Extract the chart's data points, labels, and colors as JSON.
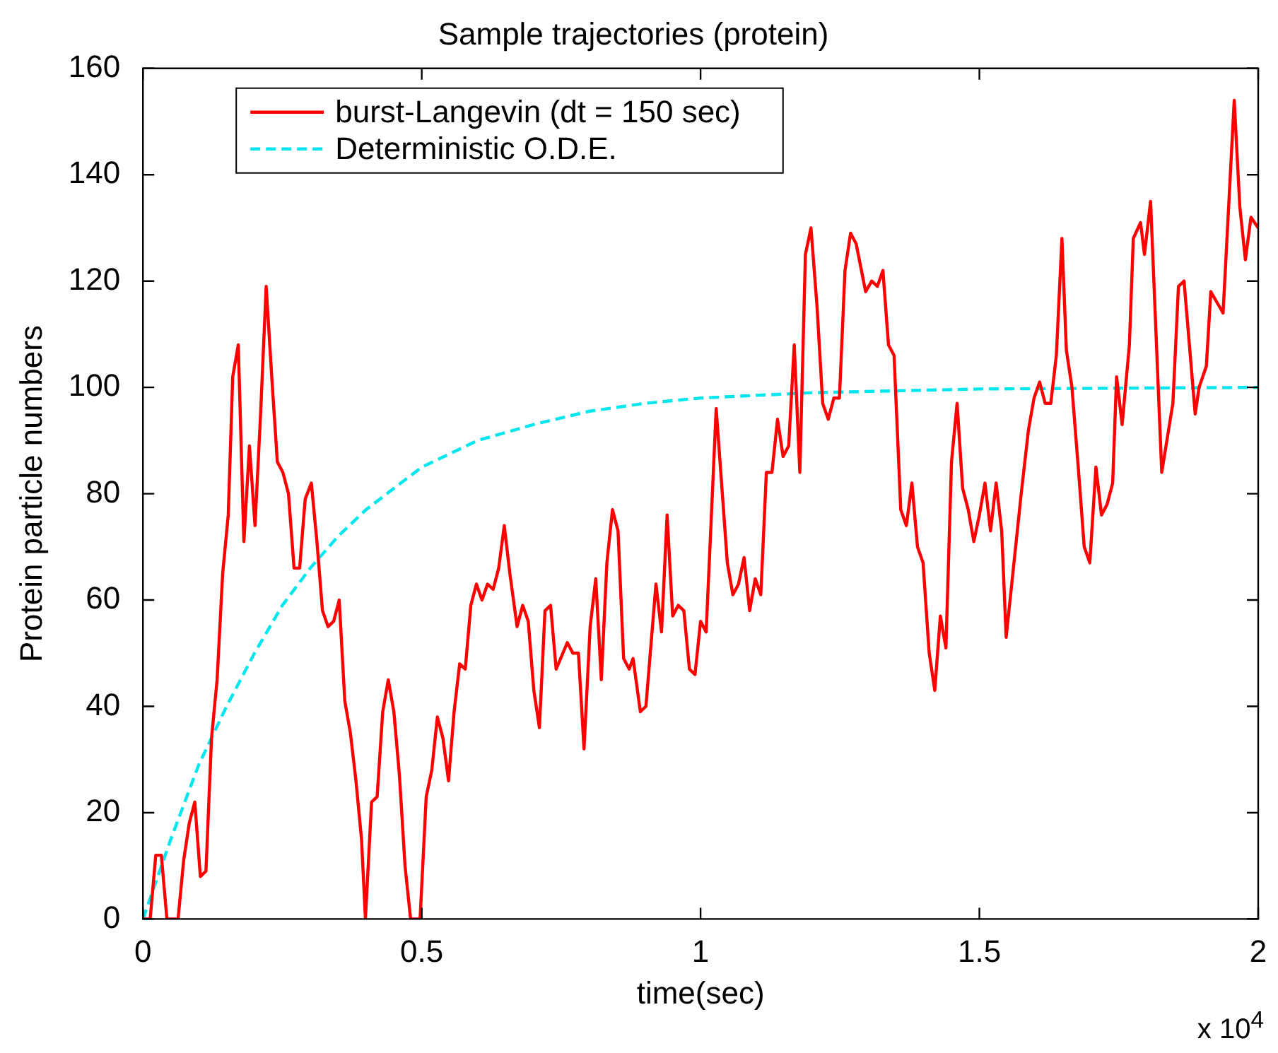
{
  "chart_data": {
    "type": "line",
    "title": "Sample trajectories (protein)",
    "xlabel": "time(sec)",
    "ylabel": "Protein particle numbers",
    "annotations": [
      "x 10$^{4}$"
    ],
    "xlim": [
      0,
      2
    ],
    "xticks": [
      0,
      0.5,
      1,
      1.5,
      2
    ],
    "ylim": [
      0,
      160
    ],
    "yticks": [
      0,
      20,
      40,
      60,
      80,
      100,
      120,
      140,
      160
    ],
    "grid": false,
    "legend": "top left",
    "marker": "none",
    "series": [
      {
        "name": "burst-Langevin (dt = 150 sec)",
        "color": "#ff0000",
        "line_style": "solid",
        "x": [
          0,
          0.013,
          0.023,
          0.033,
          0.043,
          0.063,
          0.073,
          0.083,
          0.093,
          0.103,
          0.113,
          0.123,
          0.133,
          0.143,
          0.153,
          0.161,
          0.171,
          0.181,
          0.191,
          0.201,
          0.211,
          0.221,
          0.231,
          0.241,
          0.251,
          0.261,
          0.271,
          0.281,
          0.291,
          0.302,
          0.312,
          0.322,
          0.332,
          0.342,
          0.352,
          0.362,
          0.372,
          0.382,
          0.392,
          0.399,
          0.41,
          0.42,
          0.43,
          0.44,
          0.45,
          0.46,
          0.47,
          0.48,
          0.497,
          0.508,
          0.518,
          0.528,
          0.538,
          0.548,
          0.558,
          0.568,
          0.578,
          0.588,
          0.598,
          0.608,
          0.618,
          0.628,
          0.638,
          0.648,
          0.658,
          0.671,
          0.681,
          0.691,
          0.701,
          0.711,
          0.721,
          0.731,
          0.741,
          0.761,
          0.771,
          0.781,
          0.791,
          0.802,
          0.812,
          0.822,
          0.832,
          0.842,
          0.852,
          0.862,
          0.872,
          0.879,
          0.892,
          0.902,
          0.92,
          0.93,
          0.94,
          0.95,
          0.96,
          0.97,
          0.98,
          0.99,
          1.0,
          1.01,
          1.028,
          1.048,
          1.058,
          1.068,
          1.078,
          1.088,
          1.098,
          1.108,
          1.118,
          1.128,
          1.138,
          1.148,
          1.158,
          1.168,
          1.178,
          1.188,
          1.198,
          1.209,
          1.219,
          1.229,
          1.239,
          1.249,
          1.259,
          1.269,
          1.279,
          1.296,
          1.307,
          1.317,
          1.327,
          1.337,
          1.347,
          1.359,
          1.369,
          1.379,
          1.389,
          1.399,
          1.41,
          1.42,
          1.43,
          1.44,
          1.45,
          1.46,
          1.47,
          1.48,
          1.49,
          1.5,
          1.51,
          1.52,
          1.53,
          1.54,
          1.548,
          1.575,
          1.588,
          1.598,
          1.608,
          1.618,
          1.628,
          1.638,
          1.648,
          1.656,
          1.666,
          1.678,
          1.688,
          1.698,
          1.709,
          1.719,
          1.729,
          1.739,
          1.746,
          1.756,
          1.769,
          1.776,
          1.789,
          1.796,
          1.807,
          1.827,
          1.847,
          1.857,
          1.867,
          1.887,
          1.894,
          1.907,
          1.915,
          1.937,
          1.957,
          1.967,
          1.977,
          1.987,
          2.0
        ],
        "values": [
          0,
          0,
          12,
          12,
          0,
          0,
          11,
          18,
          22,
          8,
          9,
          34,
          45,
          65,
          76,
          102,
          108,
          71,
          89,
          74,
          95,
          119,
          102,
          86,
          84,
          80,
          66,
          66,
          79,
          82,
          71,
          58,
          55,
          56,
          60,
          41,
          35,
          26,
          15,
          0,
          22,
          23,
          39,
          45,
          39,
          27,
          10,
          0,
          0,
          23,
          28,
          38,
          34,
          26,
          39,
          48,
          47,
          59,
          63,
          60,
          63,
          62,
          66,
          74,
          65,
          55,
          59,
          56,
          43,
          36,
          58,
          59,
          47,
          52,
          50,
          50,
          32,
          55,
          64,
          45,
          67,
          77,
          73,
          49,
          47,
          49,
          39,
          40,
          63,
          54,
          76,
          57,
          59,
          58,
          47,
          46,
          56,
          54,
          96,
          67,
          61,
          63,
          68,
          58,
          64,
          61,
          84,
          84,
          94,
          87,
          89,
          108,
          84,
          125,
          130,
          115,
          97,
          94,
          98,
          98,
          122,
          129,
          127,
          118,
          120,
          119,
          122,
          108,
          106,
          77,
          74,
          82,
          70,
          67,
          50,
          43,
          57,
          51,
          86,
          97,
          81,
          77,
          71,
          76,
          82,
          73,
          82,
          73,
          53,
          80,
          92,
          98,
          101,
          97,
          97,
          106,
          128,
          107,
          100,
          84,
          70,
          67,
          85,
          76,
          78,
          82,
          102,
          93,
          108,
          128,
          131,
          125,
          135,
          84,
          97,
          119,
          120,
          95,
          100,
          104,
          118,
          114,
          154,
          134,
          124,
          132,
          130
        ]
      },
      {
        "name": "Deterministic O.D.E.",
        "color": "#00e8ee",
        "line_style": "dashed",
        "x": [
          0,
          0.05,
          0.1,
          0.15,
          0.2,
          0.25,
          0.3,
          0.35,
          0.4,
          0.45,
          0.5,
          0.6,
          0.7,
          0.8,
          0.9,
          1.0,
          1.2,
          1.5,
          2.0
        ],
        "values": [
          0,
          15,
          29,
          40,
          50,
          59,
          66,
          72,
          77,
          81,
          85,
          90,
          93,
          95.5,
          97,
          98,
          99,
          99.7,
          100
        ]
      }
    ]
  }
}
